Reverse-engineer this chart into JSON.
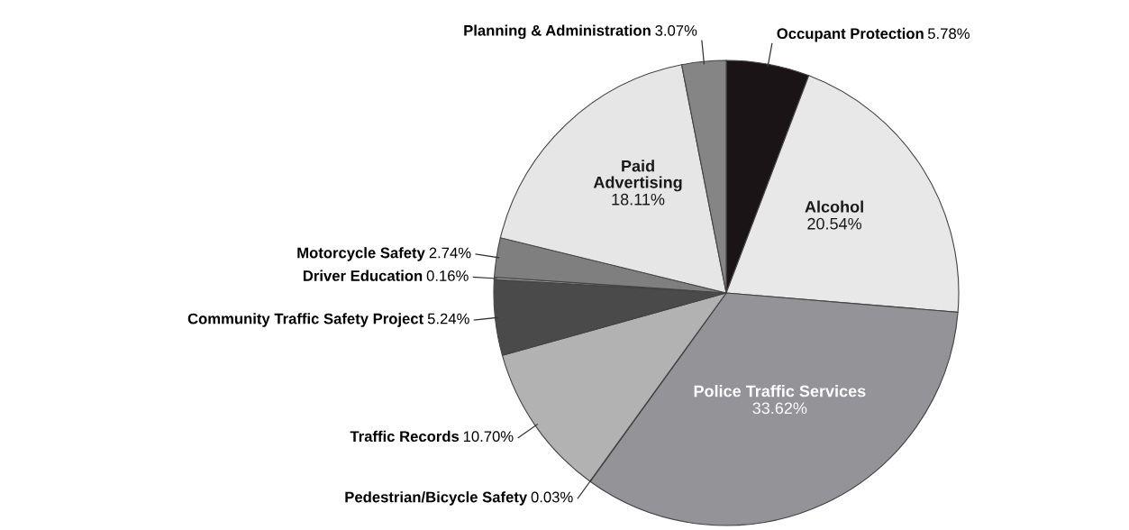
{
  "chart_data": {
    "type": "pie",
    "categories": [
      "Occupant Protection",
      "Alcohol",
      "Police Traffic Services",
      "Pedestrian/Bicycle Safety",
      "Traffic Records",
      "Community Traffic Safety Project",
      "Driver Education",
      "Motorcycle Safety",
      "Paid Advertising",
      "Planning & Administration"
    ],
    "values": [
      5.78,
      20.54,
      33.62,
      0.03,
      10.7,
      5.24,
      0.16,
      2.74,
      18.11,
      3.07
    ],
    "value_labels": [
      "5.78%",
      "20.54%",
      "33.62%",
      "0.03%",
      "10.70%",
      "5.24%",
      "0.16%",
      "2.74%",
      "18.11%",
      "3.07%"
    ],
    "colors": [
      "#1a1416",
      "#e8e8e8",
      "#939398",
      "#939398",
      "#b2b2b2",
      "#4a4a4a",
      "#a0a0a0",
      "#7f7f7f",
      "#e6e6e6",
      "#858585"
    ]
  }
}
